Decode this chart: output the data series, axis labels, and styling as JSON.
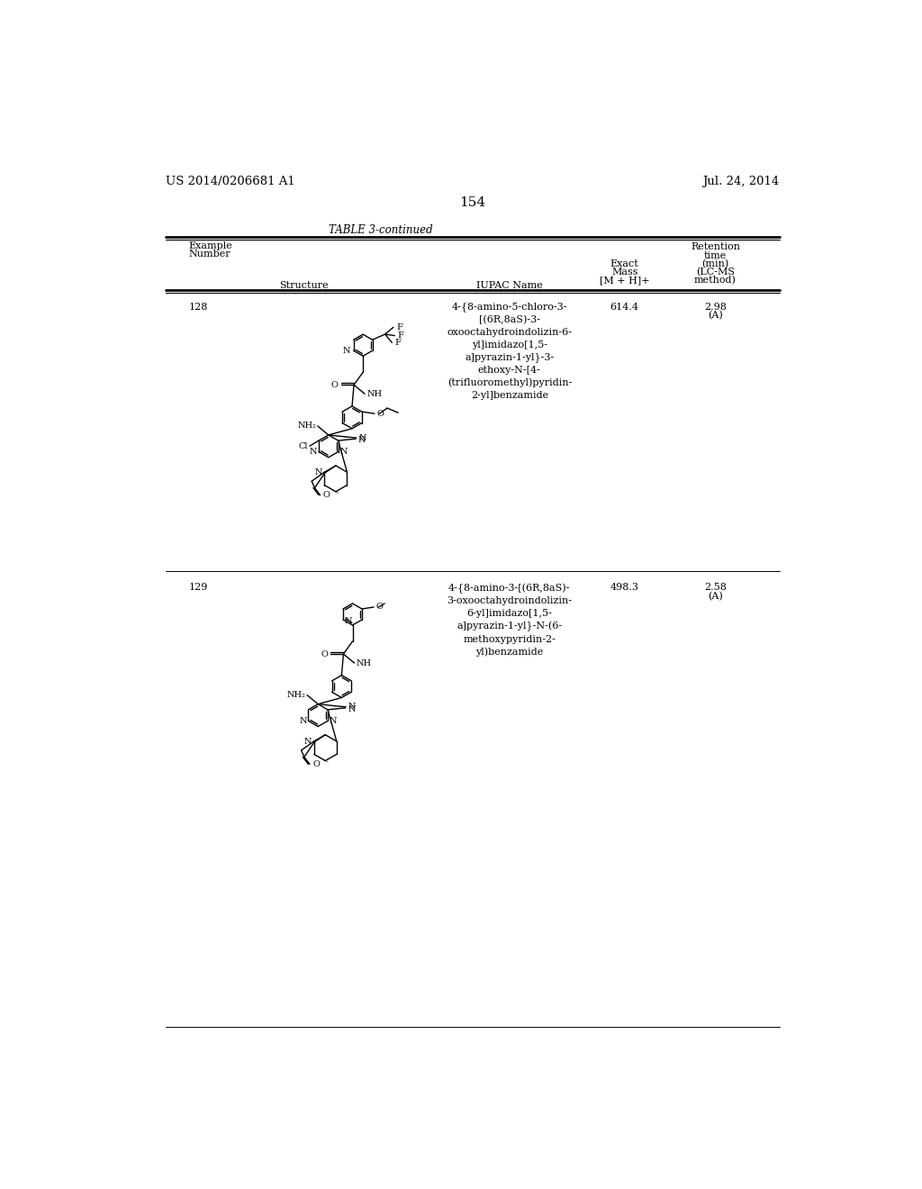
{
  "page_number": "154",
  "patent_number": "US 2014/0206681 A1",
  "patent_date": "Jul. 24, 2014",
  "table_title": "TABLE 3-continued",
  "rows": [
    {
      "example": "128",
      "iupac": "4-{8-amino-5-chloro-3-\n[(6R,8aS)-3-\noxooctahydroindolizin-6-\nyl]imidazo[1,5-\na]pyrazin-1-yl}-3-\nethoxy-N-[4-\n(trifluoromethyl)pyridin-\n2-yl]benzamide",
      "exact_mass": "614.4",
      "retention_time": "2.98\n(A)"
    },
    {
      "example": "129",
      "iupac": "4-{8-amino-3-[(6R,8aS)-\n3-oxooctahydroindolizin-\n6-yl]imidazo[1,5-\na]pyrazin-1-yl}-N-(6-\nmethoxypyridin-2-\nyl)benzamide",
      "exact_mass": "498.3",
      "retention_time": "2.58\n(A)"
    }
  ],
  "bg_color": "#ffffff",
  "text_color": "#000000",
  "lw": 1.0,
  "fs_label": 7.0,
  "fs_body": 8.0,
  "fs_header": 8.0,
  "fs_patent": 9.5,
  "fs_page": 11.0,
  "fs_title": 8.5
}
